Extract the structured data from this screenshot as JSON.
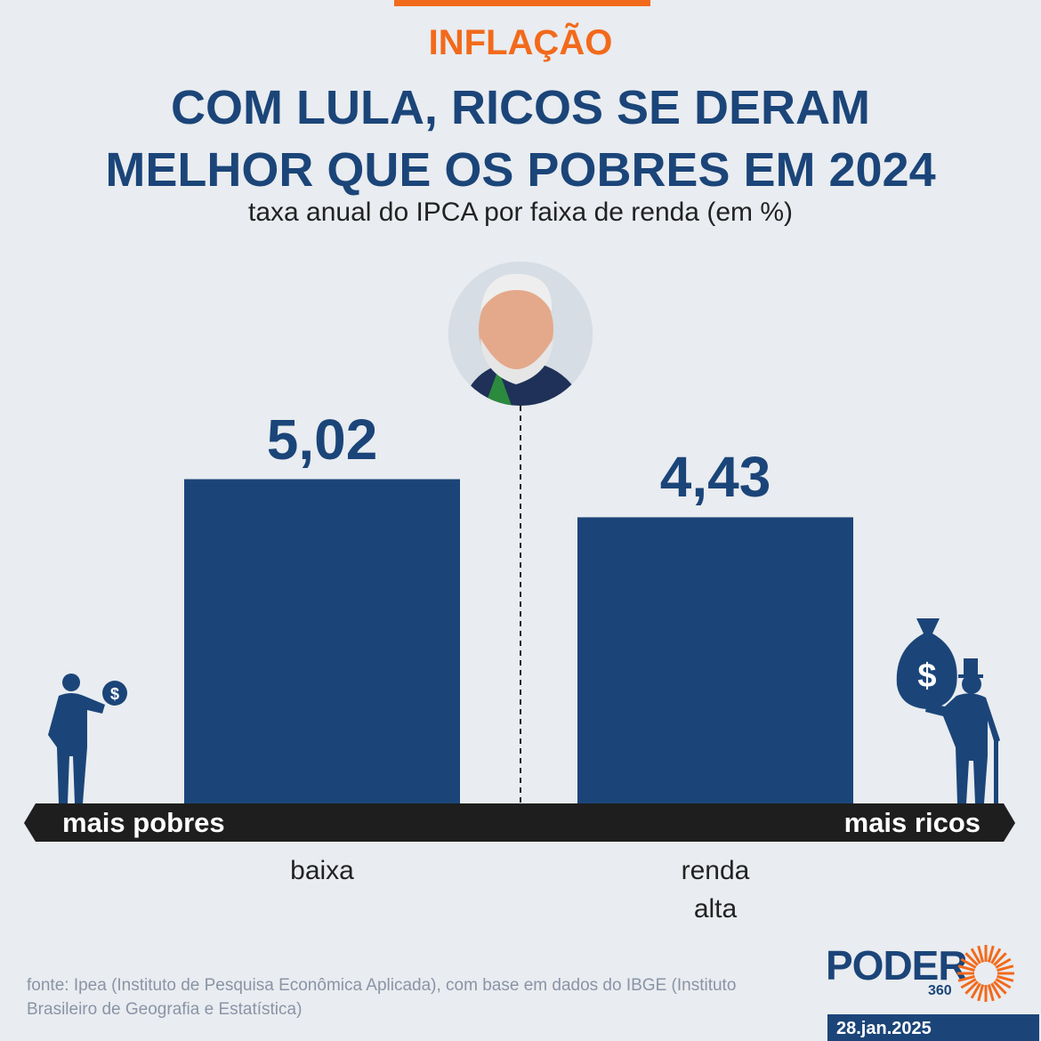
{
  "chart_data": {
    "type": "bar",
    "kicker": "INFLAÇÃO",
    "title": "COM LULA, RICOS SE DERAM MELHOR QUE OS POBRES EM 2024",
    "subtitle": "taxa anual do IPCA por faixa de renda (em %)",
    "categories": [
      "baixa",
      "renda alta"
    ],
    "values": [
      5.02,
      4.43
    ],
    "value_labels": [
      "5,02",
      "4,43"
    ],
    "color": "#1b4579",
    "axis_labels": {
      "left": "mais pobres",
      "right": "mais ricos"
    },
    "source": "fonte: Ipea (Instituto de Pesquisa Econômica Aplicada), com base em dados do IBGE (Instituto Brasileiro de Geografia e Estatística)"
  },
  "footer": {
    "brand": "PODER",
    "brand_sub": "360",
    "date": "28.jan.2025"
  }
}
